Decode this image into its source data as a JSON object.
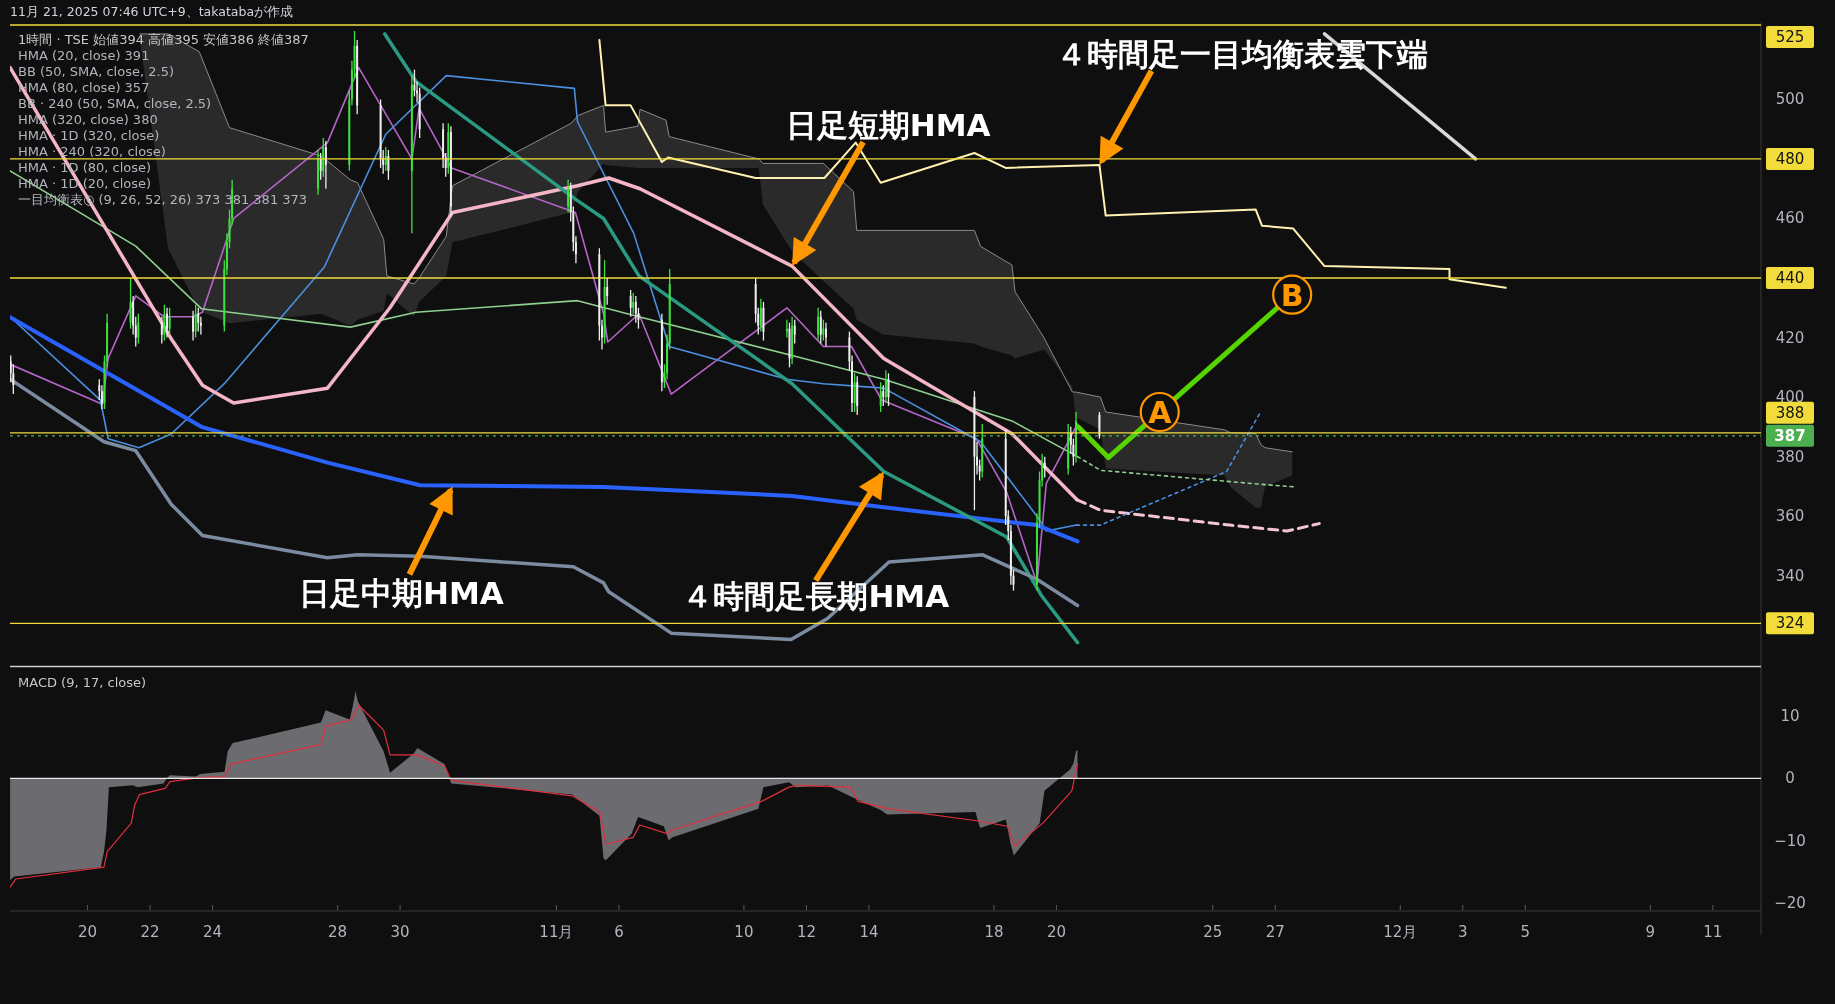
{
  "chart_data": [
    {
      "type": "candlestick",
      "title": "1時間 · TSE 始値394 高値395 安値386 終値387",
      "subtitle": "11月 21, 2025 07:46 UTC+9、takatabaが作成",
      "x": [
        "2025-10-17T13:00",
        "2025-10-17T15:00",
        "2025-10-20T09:00",
        "2025-10-20T11:00",
        "2025-10-20T13:00",
        "2025-10-20T15:00",
        "2025-10-21T09:00",
        "2025-10-21T11:00",
        "2025-10-21T13:00",
        "2025-10-21T15:00",
        "2025-10-22T09:00",
        "2025-10-22T11:00",
        "2025-10-22T13:00",
        "2025-10-22T15:00",
        "2025-10-23T09:00",
        "2025-10-23T11:00",
        "2025-10-23T13:00",
        "2025-10-23T15:00",
        "2025-10-24T09:00",
        "2025-10-24T11:00",
        "2025-10-24T13:00",
        "2025-10-24T15:00",
        "2025-10-27T09:00",
        "2025-10-27T11:00",
        "2025-10-27T13:00",
        "2025-10-27T15:00",
        "2025-10-28T09:00",
        "2025-10-28T11:00",
        "2025-10-28T13:00",
        "2025-10-28T15:00",
        "2025-10-29T09:00",
        "2025-10-29T11:00",
        "2025-10-29T13:00",
        "2025-10-29T15:00",
        "2025-10-30T09:00",
        "2025-10-30T11:00",
        "2025-10-30T13:00",
        "2025-10-30T15:00",
        "2025-10-31T09:00",
        "2025-10-31T11:00",
        "2025-10-31T13:00",
        "2025-10-31T15:00",
        "2025-11-04T09:00",
        "2025-11-04T11:00",
        "2025-11-04T13:00",
        "2025-11-04T15:00",
        "2025-11-05T09:00",
        "2025-11-05T11:00",
        "2025-11-05T13:00",
        "2025-11-05T15:00",
        "2025-11-06T09:00",
        "2025-11-06T11:00",
        "2025-11-06T13:00",
        "2025-11-06T15:00",
        "2025-11-07T09:00",
        "2025-11-07T11:00",
        "2025-11-07T13:00",
        "2025-11-07T15:00",
        "2025-11-10T09:00",
        "2025-11-10T11:00",
        "2025-11-10T13:00",
        "2025-11-10T15:00",
        "2025-11-11T09:00",
        "2025-11-11T11:00",
        "2025-11-11T13:00",
        "2025-11-11T15:00",
        "2025-11-12T09:00",
        "2025-11-12T11:00",
        "2025-11-12T13:00",
        "2025-11-12T15:00",
        "2025-11-13T09:00",
        "2025-11-13T11:00",
        "2025-11-13T13:00",
        "2025-11-13T15:00",
        "2025-11-14T09:00",
        "2025-11-14T11:00",
        "2025-11-14T13:00",
        "2025-11-14T15:00",
        "2025-11-17T09:00",
        "2025-11-17T11:00",
        "2025-11-17T13:00",
        "2025-11-17T15:00",
        "2025-11-18T09:00",
        "2025-11-18T11:00",
        "2025-11-18T13:00",
        "2025-11-18T15:00",
        "2025-11-19T09:00",
        "2025-11-19T11:00",
        "2025-11-19T13:00",
        "2025-11-19T15:00",
        "2025-11-20T09:00",
        "2025-11-20T11:00",
        "2025-11-20T13:00",
        "2025-11-20T15:00",
        "2025-11-21T09:00"
      ],
      "ohlc": [
        [
          412,
          414,
          405,
          408
        ],
        [
          408,
          411,
          401,
          404
        ],
        [
          404,
          406,
          399,
          402
        ],
        [
          402,
          404,
          396,
          398
        ],
        [
          398,
          414,
          396,
          412
        ],
        [
          412,
          428,
          410,
          425
        ],
        [
          425,
          440,
          423,
          432
        ],
        [
          432,
          434,
          421,
          424
        ],
        [
          424,
          427,
          417,
          420
        ],
        [
          420,
          428,
          418,
          425
        ],
        [
          425,
          427,
          418,
          421
        ],
        [
          421,
          431,
          419,
          428
        ],
        [
          428,
          430,
          420,
          423
        ],
        [
          423,
          430,
          421,
          427
        ],
        [
          427,
          429,
          419,
          422
        ],
        [
          422,
          431,
          420,
          428
        ],
        [
          428,
          430,
          422,
          425
        ],
        [
          425,
          427,
          421,
          424
        ],
        [
          424,
          446,
          422,
          443
        ],
        [
          443,
          455,
          441,
          452
        ],
        [
          452,
          463,
          450,
          460
        ],
        [
          460,
          473,
          458,
          470
        ],
        [
          470,
          483,
          468,
          480
        ],
        [
          480,
          482,
          473,
          476
        ],
        [
          476,
          487,
          474,
          484
        ],
        [
          484,
          486,
          470,
          478
        ],
        [
          478,
          503,
          476,
          500
        ],
        [
          500,
          513,
          498,
          510
        ],
        [
          510,
          523,
          507,
          518
        ],
        [
          518,
          520,
          495,
          498
        ],
        [
          498,
          500,
          477,
          480
        ],
        [
          480,
          483,
          475,
          478
        ],
        [
          478,
          484,
          476,
          481
        ],
        [
          481,
          483,
          473,
          476
        ],
        [
          476,
          508,
          455,
          505
        ],
        [
          505,
          510,
          501,
          503
        ],
        [
          503,
          506,
          499,
          502
        ],
        [
          502,
          504,
          487,
          490
        ],
        [
          490,
          492,
          477,
          480
        ],
        [
          480,
          482,
          474,
          477
        ],
        [
          477,
          492,
          475,
          489
        ],
        [
          489,
          491,
          461,
          464
        ],
        [
          464,
          473,
          462,
          470
        ],
        [
          470,
          472,
          459,
          462
        ],
        [
          462,
          464,
          449,
          452
        ],
        [
          452,
          454,
          445,
          448
        ],
        [
          448,
          450,
          419,
          424
        ],
        [
          424,
          426,
          416,
          420
        ],
        [
          420,
          446,
          418,
          437
        ],
        [
          437,
          440,
          431,
          434
        ],
        [
          434,
          436,
          427,
          430
        ],
        [
          430,
          435,
          428,
          432
        ],
        [
          432,
          434,
          425,
          428
        ],
        [
          428,
          430,
          423,
          426
        ],
        [
          426,
          428,
          402,
          405
        ],
        [
          405,
          411,
          403,
          408
        ],
        [
          408,
          421,
          406,
          418
        ],
        [
          418,
          443,
          416,
          438
        ],
        [
          438,
          440,
          425,
          428
        ],
        [
          428,
          430,
          421,
          424
        ],
        [
          424,
          433,
          422,
          430
        ],
        [
          430,
          432,
          419,
          422
        ],
        [
          422,
          426,
          420,
          423
        ],
        [
          423,
          425,
          410,
          413
        ],
        [
          413,
          427,
          411,
          424
        ],
        [
          424,
          426,
          418,
          421
        ],
        [
          421,
          430,
          419,
          427
        ],
        [
          427,
          429,
          418,
          421
        ],
        [
          421,
          426,
          419,
          423
        ],
        [
          423,
          425,
          417,
          420
        ],
        [
          420,
          422,
          409,
          412
        ],
        [
          412,
          414,
          395,
          398
        ],
        [
          398,
          408,
          395,
          405
        ],
        [
          405,
          407,
          394,
          397
        ],
        [
          397,
          405,
          395,
          402
        ],
        [
          402,
          404,
          397,
          400
        ],
        [
          400,
          409,
          398,
          406
        ],
        [
          406,
          408,
          397,
          400
        ],
        [
          400,
          402,
          362,
          380
        ],
        [
          380,
          385,
          374,
          377
        ],
        [
          377,
          379,
          372,
          375
        ],
        [
          375,
          391,
          373,
          386
        ],
        [
          386,
          389,
          357,
          360
        ],
        [
          360,
          362,
          352,
          355
        ],
        [
          355,
          357,
          337,
          340
        ],
        [
          340,
          342,
          335,
          337
        ],
        [
          337,
          361,
          335,
          358
        ],
        [
          358,
          375,
          356,
          372
        ],
        [
          372,
          381,
          370,
          378
        ],
        [
          378,
          380,
          373,
          376
        ],
        [
          376,
          391,
          374,
          388
        ],
        [
          388,
          390,
          381,
          384
        ],
        [
          384,
          386,
          377,
          380
        ],
        [
          380,
          395,
          378,
          392
        ],
        [
          394,
          395,
          386,
          387
        ]
      ],
      "colors": [
        "#eeeeee",
        "#eeeeee",
        "#eeeeee",
        "#eeeeee",
        "#3ee23e",
        "#3ee23e",
        "#3ee23e",
        "#eeeeee",
        "#eeeeee",
        "#3ee23e",
        "#eeeeee",
        "#3ee23e",
        "#eeeeee",
        "#3ee23e",
        "#eeeeee",
        "#3ee23e",
        "#eeeeee",
        "#eeeeee",
        "#3ee23e",
        "#3ee23e",
        "#3ee23e",
        "#3ee23e",
        "#3ee23e",
        "#eeeeee",
        "#3ee23e",
        "#eeeeee",
        "#3ee23e",
        "#3ee23e",
        "#3ee23e",
        "#eeeeee",
        "#eeeeee",
        "#eeeeee",
        "#3ee23e",
        "#eeeeee",
        "#3ee23e",
        "#eeeeee",
        "#eeeeee",
        "#eeeeee",
        "#eeeeee",
        "#eeeeee",
        "#3ee23e",
        "#eeeeee",
        "#3ee23e",
        "#eeeeee",
        "#eeeeee",
        "#eeeeee",
        "#eeeeee",
        "#eeeeee",
        "#3ee23e",
        "#eeeeee",
        "#eeeeee",
        "#3ee23e",
        "#eeeeee",
        "#eeeeee",
        "#eeeeee",
        "#3ee23e",
        "#3ee23e",
        "#3ee23e",
        "#eeeeee",
        "#eeeeee",
        "#3ee23e",
        "#eeeeee",
        "#3ee23e",
        "#eeeeee",
        "#3ee23e",
        "#eeeeee",
        "#3ee23e",
        "#eeeeee",
        "#3ee23e",
        "#eeeeee",
        "#eeeeee",
        "#eeeeee",
        "#3ee23e",
        "#eeeeee",
        "#3ee23e",
        "#eeeeee",
        "#3ee23e",
        "#eeeeee",
        "#eeeeee",
        "#eeeeee",
        "#eeeeee",
        "#3ee23e",
        "#eeeeee",
        "#eeeeee",
        "#eeeeee",
        "#eeeeee",
        "#3ee23e",
        "#3ee23e",
        "#3ee23e",
        "#eeeeee",
        "#3ee23e",
        "#eeeeee",
        "#eeeeee",
        "#3ee23e",
        "#eeeeee"
      ],
      "series": [
        {
          "type": "line",
          "color": "#b565c8",
          "x": [
            "2025-10-17T12:31",
            "2025-10-20T11:24",
            "2025-10-20T15:48",
            "2025-10-21T13:00",
            "2025-10-22T10:36",
            "2025-10-23T09:24",
            "2025-10-23T16:12",
            "2025-10-24T16:12",
            "2025-10-27T16:12",
            "2025-10-28T16:12",
            "2025-10-30T09:00",
            "2025-10-30T14:36",
            "2025-10-31T15:24",
            "2025-11-04T14:36",
            "2025-11-05T12:12",
            "2025-11-05T15:24",
            "2025-11-06T15:24",
            "2025-11-07T16:12",
            "2025-11-11T09:00",
            "2025-11-12T13:00",
            "2025-11-13T10:36",
            "2025-11-14T09:48",
            "2025-11-17T10:36",
            "2025-11-18T09:48",
            "2025-11-19T09:00",
            "2025-11-19T16:12",
            "2025-11-20T16:12"
          ],
          "values": [
            411,
            397.6,
            413,
            434,
            427,
            427,
            428.5,
            460,
            485.5,
            510.7,
            480,
            497,
            477,
            462,
            428,
            418.5,
            428,
            401,
            430,
            417,
            417,
            399,
            386,
            368,
            337.5,
            371,
            391
          ]
        },
        {
          "type": "line",
          "color": "#4a8fe0",
          "x": [
            "2025-10-17T12:31",
            "2025-10-20T09:48",
            "2025-10-20T15:48",
            "2025-10-21T15:24",
            "2025-10-22T16:12",
            "2025-10-24T09:00",
            "2025-10-27T13:48",
            "2025-10-29T13:00",
            "2025-10-31T11:24",
            "2025-11-04T13:48",
            "2025-11-04T16:12",
            "2025-11-06T11:24",
            "2025-11-07T14:36",
            "2025-11-11T09:00",
            "2025-11-12T13:00",
            "2025-11-14T11:24",
            "2025-11-17T13:48",
            "2025-11-19T09:00",
            "2025-11-19T16:12",
            "2025-11-20T15:24"
          ],
          "values": [
            427,
            399,
            386,
            383,
            387.6,
            404.5,
            443.7,
            488.3,
            508,
            503.7,
            492.5,
            455,
            417,
            406,
            404.5,
            403,
            385,
            360,
            355,
            357
          ]
        },
        {
          "type": "line",
          "color": "#8fcf8f",
          "x": [
            "2025-10-17T12:31",
            "2025-10-21T13:00",
            "2025-10-23T15:24",
            "2025-10-28T09:48",
            "2025-10-30T12:12",
            "2025-11-04T16:12",
            "2025-11-06T15:24",
            "2025-11-11T13:00",
            "2025-11-14T11:24",
            "2025-11-18T13:48",
            "2025-11-20T16:12"
          ],
          "values": [
            476,
            450.7,
            429.7,
            423.5,
            428.5,
            432.4,
            427,
            414,
            406,
            392,
            380
          ]
        },
        {
          "type": "line",
          "color": "#f4b6c6",
          "x": [
            "2025-10-17T12:31",
            "2025-10-22T15:58",
            "2025-10-23T16:12",
            "2025-10-24T16:12",
            "2025-10-27T16:12",
            "2025-10-29T16:12",
            "2025-10-31T16:12",
            "2025-11-04T16:12",
            "2025-11-05T16:12",
            "2025-11-06T16:12",
            "2025-11-11T13:00",
            "2025-11-14T11:24",
            "2025-11-18T13:48",
            "2025-11-20T15:48"
          ],
          "values": [
            510.7,
            419.8,
            404,
            398,
            403,
            430,
            462,
            471,
            473.6,
            470,
            444,
            413,
            387.7,
            365.5
          ]
        },
        {
          "type": "line",
          "color": "#2962ff",
          "x": [
            "2025-10-17T12:31",
            "2025-10-23T15:24",
            "2025-10-27T16:12",
            "2025-10-30T15:24",
            "2025-11-05T12:12",
            "2025-11-11T13:00",
            "2025-11-14T14:36",
            "2025-11-19T09:00",
            "2025-11-20T16:12"
          ],
          "values": [
            426.8,
            390,
            378,
            370.4,
            369.8,
            366.8,
            362.8,
            357,
            351.5
          ]
        },
        {
          "type": "line",
          "color": "#2b9a82",
          "x": [
            "2025-10-29T12:12",
            "2025-10-30T12:12",
            "2025-11-04T16:12",
            "2025-11-05T12:12",
            "2025-11-06T15:24",
            "2025-11-11T13:00",
            "2025-11-14T11:24",
            "2025-11-18T09:48",
            "2025-11-19T13:00",
            "2025-11-20T16:12"
          ],
          "values": [
            522,
            506,
            466,
            460,
            440.7,
            404.5,
            375,
            353,
            333,
            317.5
          ]
        },
        {
          "type": "line",
          "color": "#7c8ca0",
          "x": [
            "2025-10-17T12:31",
            "2025-10-20T12:36",
            "2025-10-21T13:00",
            "2025-10-22T16:12",
            "2025-10-23T16:12",
            "2025-10-27T16:12",
            "2025-10-28T15:24",
            "2025-10-30T15:24",
            "2025-11-04T13:00",
            "2025-11-05T12:12",
            "2025-11-05T16:12",
            "2025-11-07T16:12",
            "2025-11-11T12:12",
            "2025-11-12T16:12",
            "2025-11-14T15:24",
            "2025-11-17T15:24",
            "2025-11-19T09:00",
            "2025-11-20T16:12"
          ],
          "values": [
            406,
            385,
            382,
            364,
            353.5,
            346,
            347,
            346.5,
            343,
            337.6,
            334.6,
            320.7,
            318.6,
            325.6,
            344.6,
            347,
            338.8,
            330
          ]
        },
        {
          "type": "line",
          "color": "#fff2b0",
          "x": [
            "2025-11-05T09:00",
            "2025-11-05T13:48",
            "2025-11-06T09:00",
            "2025-11-07T09:00",
            "2025-11-07T13:48",
            "2025-11-10T09:00",
            "2025-11-12T13:48",
            "2025-11-13T13:48",
            "2025-11-14T09:00",
            "2025-11-17T09:00",
            "2025-11-18T09:00",
            "2025-11-21T09:00",
            "2025-11-21T13:48",
            "2025-11-26T09:00",
            "2025-11-26T13:48",
            "2025-11-27T13:48",
            "2025-11-28T13:48",
            "2025-12-02T13:48",
            "2025-12-02T13:48",
            "2025-12-04T09:00"
          ],
          "values": [
            520,
            498,
            498,
            479,
            480.5,
            473.6,
            473.6,
            485.5,
            472,
            482,
            477,
            478,
            461,
            463,
            457.6,
            456.6,
            444,
            443,
            439.6,
            436.7
          ]
        },
        {
          "type": "line",
          "color": "#d8d8d8",
          "x": [
            "2025-11-28T13:48",
            "2025-12-03T09:48"
          ],
          "values": [
            522,
            480
          ]
        },
        {
          "type": "line",
          "color": "#8a8a8a",
          "x": [
            "2025-10-21T16:12",
            "2025-10-22T13:48",
            "2025-10-23T13:48",
            "2025-10-24T13:00",
            "2025-10-27T11:24",
            "2025-10-28T09:48",
            "2025-10-28T15:24",
            "2025-10-29T11:24",
            "2025-10-29T13:48",
            "2025-10-30T10:36",
            "2025-10-30T14:36",
            "2025-10-31T11:24",
            "2025-10-31T16:12",
            "2025-11-04T11:24",
            "2025-11-04T16:36",
            "2025-11-05T12:12",
            "2025-11-05T13:48",
            "2025-11-06T14:36",
            "2025-11-06T16:12",
            "2025-11-07T12:12",
            "2025-11-07T14:36",
            "2025-11-10T11:24",
            "2025-11-10T14:36",
            "2025-11-11T13:00",
            "2025-11-12T13:00",
            "2025-11-13T12:12",
            "2025-11-13T14:36",
            "2025-11-14T10:36",
            "2025-11-17T09:00",
            "2025-11-17T13:48",
            "2025-11-18T13:48",
            "2025-11-18T16:12",
            "2025-11-19T14:36",
            "2025-11-20T12:12",
            "2025-11-20T14:36",
            "2025-11-21T09:48",
            "2025-11-21T13:48",
            "2025-11-25T09:00",
            "2025-11-25T13:48",
            "2025-11-26T09:00",
            "2025-11-26T13:00",
            "2025-11-26T16:12",
            "2025-11-27T13:00"
          ],
          "values": [
            522,
            522,
            516,
            490.5,
            481,
            473,
            472,
            453,
            440.7,
            438,
            440,
            454,
            471,
            492,
            494.6,
            498,
            489,
            491,
            496.7,
            493,
            487.5,
            480,
            478.5,
            478.5,
            478.5,
            469,
            456,
            456,
            456,
            450.6,
            444.4,
            435.4,
            419.8,
            401.7,
            401.7,
            400,
            395,
            389,
            388,
            387.7,
            384,
            383,
            381.6
          ],
          "upper": [
            522,
            522,
            516,
            490.5,
            481,
            473,
            472,
            453,
            440.7,
            438,
            440,
            454,
            471,
            492,
            494.6,
            498,
            489,
            491,
            496.7,
            493,
            487.5,
            480,
            478.5,
            478.5,
            478.5,
            469,
            456,
            456,
            456,
            450.6,
            444.4,
            435.4,
            419.8,
            401.7,
            401.7,
            400,
            395,
            389,
            388,
            387.7,
            384,
            383,
            381.6
          ],
          "lower": [
            520,
            450,
            429,
            424.8,
            428,
            424,
            426,
            429,
            435,
            427,
            432,
            440.7,
            452,
            462,
            469,
            478.5,
            478,
            477,
            477,
            477,
            477,
            477,
            464.6,
            449,
            439,
            429.7,
            426,
            421,
            418,
            417,
            414,
            413,
            416,
            403.4,
            393.3,
            389,
            376,
            373.7,
            369.8,
            362.8,
            362.8,
            370,
            373.7
          ]
        },
        {
          "type": "line",
          "color": "#f4c4cf",
          "line_style": "dashed",
          "x": [
            "2025-11-20T15:48",
            "2025-11-21T09:48",
            "2025-11-25T13:00",
            "2025-11-27T09:00",
            "2025-11-28T09:48"
          ],
          "values": [
            365.5,
            362,
            357,
            355,
            357.5
          ]
        },
        {
          "type": "line",
          "color": "#4a8fe0",
          "line_style": "dotted",
          "x": [
            "2025-11-20T15:24",
            "2025-11-21T09:48",
            "2025-11-25T10:36",
            "2025-11-26T12:12"
          ],
          "values": [
            357,
            357,
            375,
            394.6
          ]
        },
        {
          "type": "line",
          "color": "#8fcf8f",
          "line_style": "dotted",
          "x": [
            "2025-11-20T16:12",
            "2025-11-21T09:48",
            "2025-11-26T10:36",
            "2025-11-27T15:24"
          ],
          "values": [
            380,
            375.4,
            370.8,
            369.8
          ]
        },
        {
          "type": "line",
          "color": "#55d400",
          "x": [
            "2025-11-20T16:36",
            "2025-11-21T15:48",
            "2025-11-27T13:00"
          ],
          "values": [
            390,
            379.7,
            434.4
          ]
        }
      ],
      "annotations": [
        "HMA (20, close) 391",
        "BB (50, SMA, close, 2.5)",
        "HMA (80, close) 357",
        "BB · 240 (50, SMA, close, 2.5)",
        "HMA (320, close) 380",
        "HMA · 1D (320, close)",
        "HMA · 240 (320, close)",
        "HMA · 1D (80, close)",
        "HMA · 1D (20, close)",
        "一目均衡表◎ (9, 26, 52, 26) 373 381 381 373",
        {
          "text": "日足短期HMA",
          "x": "2025-11-11T13:00",
          "y": 444
        },
        {
          "text": "４時間足一目均衡表雲下端",
          "x": "2025-11-21T09:00",
          "y": 478
        },
        {
          "text": "日足中期HMA",
          "x": "2025-10-31T16:12",
          "y": 370
        },
        {
          "text": "４時間足長期HMA",
          "x": "2025-11-14T11:24",
          "y": 375
        },
        {
          "text": "A",
          "x": "2025-11-23T07:18",
          "y": 395
        },
        {
          "text": "B",
          "x": "2025-11-27T13:00",
          "y": 434.4
        }
      ],
      "ref_lines": [
        {
          "axis": "y",
          "value": 525,
          "label": "525",
          "color": "#f2dc3c"
        },
        {
          "axis": "y",
          "value": 480,
          "label": "480",
          "color": "#f2dc3c"
        },
        {
          "axis": "y",
          "value": 440,
          "label": "440",
          "color": "#f2dc3c"
        },
        {
          "axis": "y",
          "value": 388,
          "label": "388",
          "color": "#f2dc3c"
        },
        {
          "axis": "y",
          "value": 387,
          "label": "387",
          "color": "#4caf50",
          "line_style": "dotted"
        },
        {
          "axis": "y",
          "value": 324,
          "label": "324",
          "color": "#f2dc3c"
        }
      ],
      "xlim": [
        "2025-10-17T12:26",
        "2025-12-12T13:00"
      ],
      "ylim": [
        310,
        525
      ],
      "yticks": [
        340,
        360,
        380,
        400,
        420,
        460,
        500
      ],
      "tick_labels": "y"
    },
    {
      "type": "area",
      "title": "MACD (9, 17, close)",
      "series": [
        {
          "color": "#6b6b70",
          "x": [
            "2025-10-17T12:31",
            "2025-10-17T15:38",
            "2025-10-20T10:07",
            "2025-10-20T12:36",
            "2025-10-20T14:31",
            "2025-10-20T16:22",
            "2025-10-21T10:50",
            "2025-10-21T14:36",
            "2025-10-22T10:17",
            "2025-10-22T12:46",
            "2025-10-22T15:14",
            "2025-10-23T11:00",
            "2025-10-23T14:41",
            "2025-10-24T09:10",
            "2025-10-24T11:38",
            "2025-10-24T15:24",
            "2025-10-27T11:10",
            "2025-10-27T14:50",
            "2025-10-28T09:19",
            "2025-10-28T11:48",
            "2025-10-28T13:43",
            "2025-10-28T15:34",
            "2025-10-29T11:19",
            "2025-10-29T16:17",
            "2025-10-30T10:46",
            "2025-10-30T13:14",
            "2025-10-31T10:12",
            "2025-10-31T15:10",
            "2025-11-04T12:07",
            "2025-11-05T09:05",
            "2025-11-05T12:12",
            "2025-11-05T14:02",
            "2025-11-06T09:48",
            "2025-11-06T14:46",
            "2025-11-07T10:31",
            "2025-11-07T14:12",
            "2025-11-07T16:41",
            "2025-11-10T11:10",
            "2025-11-10T14:55",
            "2025-11-11T10:36",
            "2025-11-11T15:38",
            "2025-11-12T11:19",
            "2025-11-12T16:17",
            "2025-11-13T12:02",
            "2025-11-14T09:00",
            "2025-11-14T13:58",
            "2025-11-17T09:43",
            "2025-11-17T13:24",
            "2025-11-18T09:10",
            "2025-11-18T12:50",
            "2025-11-18T15:19",
            "2025-11-19T11:05",
            "2025-11-19T14:50",
            "2025-11-20T10:36",
            "2025-11-20T13:00",
            "2025-11-20T14:55",
            "2025-11-20T16:07"
          ],
          "values": [
            -16.4,
            -15.8,
            -14.3,
            -11.8,
            -8.3,
            -1.4,
            -1.1,
            -1.4,
            -0.8,
            0,
            0.5,
            0.3,
            0.7,
            1.1,
            4.4,
            5.7,
            9.0,
            11.0,
            9.5,
            11.8,
            14.1,
            12.4,
            4.4,
            0.9,
            4.1,
            4.9,
            2.3,
            -0.8,
            -2.6,
            -6.0,
            -12.9,
            -13.2,
            -8.9,
            -6.2,
            -7.7,
            -10.0,
            -9.5,
            -4.9,
            -1.4,
            -0.6,
            -1.4,
            -1.2,
            -1.1,
            -3.1,
            -5.1,
            -5.8,
            -5.4,
            -8.0,
            -6.6,
            -10.6,
            -12.4,
            -7.2,
            -2.0,
            1.5,
            2.4,
            4.4,
            4.6
          ]
        },
        {
          "type": "line",
          "color": "#e0303f",
          "x": [
            "2025-10-17T12:31",
            "2025-10-17T16:55",
            "2025-10-20T12:36",
            "2025-10-20T15:05",
            "2025-10-21T09:34",
            "2025-10-21T12:07",
            "2025-10-21T15:48",
            "2025-10-22T11:34",
            "2025-10-22T15:14",
            "2025-10-23T12:12",
            "2025-10-24T09:10",
            "2025-10-24T14:07",
            "2025-10-27T11:10",
            "2025-10-27T14:50",
            "2025-10-28T10:36",
            "2025-10-28T14:17",
            "2025-10-28T16:12",
            "2025-10-29T11:19",
            "2025-10-29T16:17",
            "2025-10-30T13:14",
            "2025-10-31T10:12",
            "2025-10-31T15:10",
            "2025-11-04T12:07",
            "2025-11-05T09:05",
            "2025-11-05T14:02",
            "2025-11-06T11:00",
            "2025-11-06T16:02",
            "2025-11-07T13:00",
            "2025-11-07T16:41",
            "2025-11-10T13:38",
            "2025-11-11T10:36",
            "2025-11-11T16:50",
            "2025-11-13T09:34",
            "2025-11-13T15:43",
            "2025-11-14T15:10",
            "2025-11-17T13:24",
            "2025-11-18T10:22",
            "2025-11-18T15:58",
            "2025-11-19T13:34",
            "2025-11-20T11:48",
            "2025-11-20T16:07"
          ],
          "values": [
            -17.5,
            -16.2,
            -14.3,
            -11.8,
            -7.2,
            -4.3,
            -2.6,
            -1.6,
            -0.5,
            0.1,
            0.3,
            2.3,
            5.5,
            8.4,
            9.5,
            10.9,
            11.8,
            7.8,
            3.8,
            3.8,
            2.0,
            -0.3,
            -2.8,
            -5.4,
            -10.6,
            -9.5,
            -7.5,
            -8.9,
            -8.3,
            -3.7,
            -1.4,
            -1.1,
            -1.4,
            -3.7,
            -4.9,
            -6.9,
            -7.7,
            -10.9,
            -7.2,
            -2.0,
            2.4
          ]
        }
      ],
      "ref_lines": [
        {
          "axis": "y",
          "value": 0,
          "color": "#e8e8e8"
        }
      ],
      "xlim": [
        "2025-10-17T12:26",
        "2025-12-12T13:00"
      ],
      "xticks": [
        {
          "value": "2025-10-20",
          "label": "20"
        },
        {
          "value": "2025-10-22",
          "label": "22"
        },
        {
          "value": "2025-10-24",
          "label": "24"
        },
        {
          "value": "2025-10-28",
          "label": "28"
        },
        {
          "value": "2025-10-30",
          "label": "30"
        },
        {
          "value": "2025-11-04",
          "label": "11月"
        },
        {
          "value": "2025-11-06",
          "label": "6"
        },
        {
          "value": "2025-11-10",
          "label": "10"
        },
        {
          "value": "2025-11-12",
          "label": "12"
        },
        {
          "value": "2025-11-14",
          "label": "14"
        },
        {
          "value": "2025-11-18",
          "label": "18"
        },
        {
          "value": "2025-11-20",
          "label": "20"
        },
        {
          "value": "2025-11-25",
          "label": "25"
        },
        {
          "value": "2025-11-27",
          "label": "27"
        },
        {
          "value": "2025-12-01",
          "label": "12月"
        },
        {
          "value": "2025-12-03",
          "label": "3"
        },
        {
          "value": "2025-12-05",
          "label": "5"
        },
        {
          "value": "2025-12-09",
          "label": "9"
        },
        {
          "value": "2025-12-11",
          "label": "11"
        }
      ],
      "ylim": [
        -21.2,
        17.8
      ],
      "yticks": [
        {
          "value": -20,
          "label": "−20"
        },
        {
          "value": -10,
          "label": "−10"
        },
        0,
        10
      ]
    }
  ]
}
